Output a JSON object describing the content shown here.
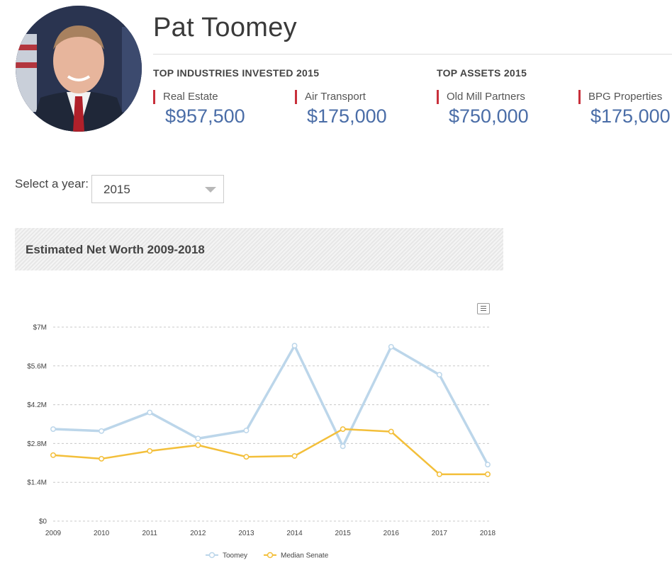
{
  "profile": {
    "name": "Pat Toomey"
  },
  "industries": {
    "title": "TOP INDUSTRIES INVESTED 2015",
    "items": [
      {
        "label": "Real Estate",
        "value": "$957,500"
      },
      {
        "label": "Air Transport",
        "value": "$175,000"
      }
    ]
  },
  "assets": {
    "title": "TOP ASSETS 2015",
    "items": [
      {
        "label": "Old Mill Partners",
        "value": "$750,000"
      },
      {
        "label": "BPG Properties",
        "value": "$175,000"
      }
    ]
  },
  "year_select": {
    "label": "Select a year:",
    "value": "2015"
  },
  "chart_header": "Estimated Net Worth 2009-2018",
  "colors": {
    "accent_bar": "#c8303b",
    "value_text": "#4a6da7",
    "toomey": "#bcd6ea",
    "median": "#f3bf3a"
  },
  "chart_data": {
    "type": "line",
    "title": "",
    "xlabel": "",
    "ylabel": "",
    "x": [
      2009,
      2010,
      2011,
      2012,
      2013,
      2014,
      2015,
      2016,
      2017,
      2018
    ],
    "ylim": [
      0,
      7000000
    ],
    "y_ticks": [
      "$0",
      "$1.4M",
      "$2.8M",
      "$4.2M",
      "$5.6M",
      "$7M"
    ],
    "y_tick_values": [
      0,
      1400000,
      2800000,
      4200000,
      5600000,
      7000000
    ],
    "grid": true,
    "legend_position": "bottom-center",
    "series": [
      {
        "name": "Toomey",
        "values": [
          3320000,
          3250000,
          3920000,
          2980000,
          3270000,
          6330000,
          2700000,
          6290000,
          5280000,
          2040000
        ]
      },
      {
        "name": "Median Senate",
        "values": [
          2380000,
          2250000,
          2530000,
          2740000,
          2320000,
          2350000,
          3320000,
          3230000,
          1690000,
          1690000
        ]
      }
    ]
  }
}
